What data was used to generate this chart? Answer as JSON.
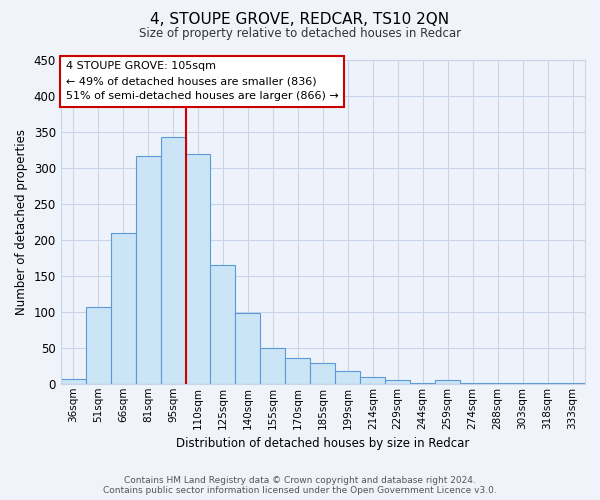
{
  "title": "4, STOUPE GROVE, REDCAR, TS10 2QN",
  "subtitle": "Size of property relative to detached houses in Redcar",
  "xlabel": "Distribution of detached houses by size in Redcar",
  "ylabel": "Number of detached properties",
  "bar_labels": [
    "36sqm",
    "51sqm",
    "66sqm",
    "81sqm",
    "95sqm",
    "110sqm",
    "125sqm",
    "140sqm",
    "155sqm",
    "170sqm",
    "185sqm",
    "199sqm",
    "214sqm",
    "229sqm",
    "244sqm",
    "259sqm",
    "274sqm",
    "288sqm",
    "303sqm",
    "318sqm",
    "333sqm"
  ],
  "bar_values": [
    7,
    106,
    210,
    316,
    343,
    319,
    165,
    98,
    50,
    36,
    29,
    18,
    9,
    5,
    1,
    5,
    1,
    1,
    1,
    1,
    1
  ],
  "bar_color": "#cce5f6",
  "bar_edge_color": "#5b9bd5",
  "vline_x": 5,
  "vline_color": "#cc0000",
  "annotation_title": "4 STOUPE GROVE: 105sqm",
  "annotation_line1": "← 49% of detached houses are smaller (836)",
  "annotation_line2": "51% of semi-detached houses are larger (866) →",
  "annotation_box_color": "#ffffff",
  "annotation_box_edge": "#cc0000",
  "ylim": [
    0,
    450
  ],
  "yticks": [
    0,
    50,
    100,
    150,
    200,
    250,
    300,
    350,
    400,
    450
  ],
  "footnote1": "Contains HM Land Registry data © Crown copyright and database right 2024.",
  "footnote2": "Contains public sector information licensed under the Open Government Licence v3.0.",
  "background_color": "#f0f4fa",
  "plot_bg_color": "#eef2fa",
  "grid_color": "#c8d4e8"
}
